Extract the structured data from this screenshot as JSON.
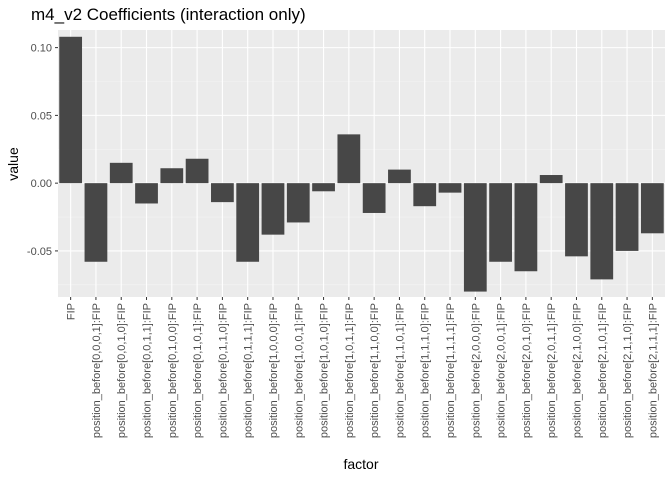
{
  "chart_data": {
    "type": "bar",
    "title": "m4_v2 Coefficients (interaction only)",
    "xlabel": "factor",
    "ylabel": "value",
    "ylim": [
      -0.084,
      0.113
    ],
    "yticks": [
      -0.05,
      0.0,
      0.05,
      0.1
    ],
    "ytick_labels": [
      "-0.05",
      "0.00",
      "0.05",
      "0.10"
    ],
    "grid": true,
    "legend": "none",
    "bar_color": "#474747",
    "panel_color": "#ebebeb",
    "categories": [
      "FIP",
      "position_before[0,0,0,1]:FIP",
      "position_before[0,0,1,0]:FIP",
      "position_before[0,0,1,1]:FIP",
      "position_before[0,1,0,0]:FIP",
      "position_before[0,1,0,1]:FIP",
      "position_before[0,1,1,0]:FIP",
      "position_before[0,1,1,1]:FIP",
      "position_before[1,0,0,0]:FIP",
      "position_before[1,0,0,1]:FIP",
      "position_before[1,0,1,0]:FIP",
      "position_before[1,0,1,1]:FIP",
      "position_before[1,1,0,0]:FIP",
      "position_before[1,1,0,1]:FIP",
      "position_before[1,1,1,0]:FIP",
      "position_before[1,1,1,1]:FIP",
      "position_before[2,0,0,0]:FIP",
      "position_before[2,0,0,1]:FIP",
      "position_before[2,0,1,0]:FIP",
      "position_before[2,0,1,1]:FIP",
      "position_before[2,1,0,0]:FIP",
      "position_before[2,1,0,1]:FIP",
      "position_before[2,1,1,0]:FIP",
      "position_before[2,1,1,1]:FIP"
    ],
    "values": [
      0.108,
      -0.058,
      0.015,
      -0.015,
      0.011,
      0.018,
      -0.014,
      -0.058,
      -0.038,
      -0.029,
      -0.006,
      0.036,
      -0.022,
      0.01,
      -0.017,
      -0.007,
      -0.08,
      -0.058,
      -0.065,
      0.006,
      -0.054,
      -0.071,
      -0.05,
      -0.037
    ]
  }
}
